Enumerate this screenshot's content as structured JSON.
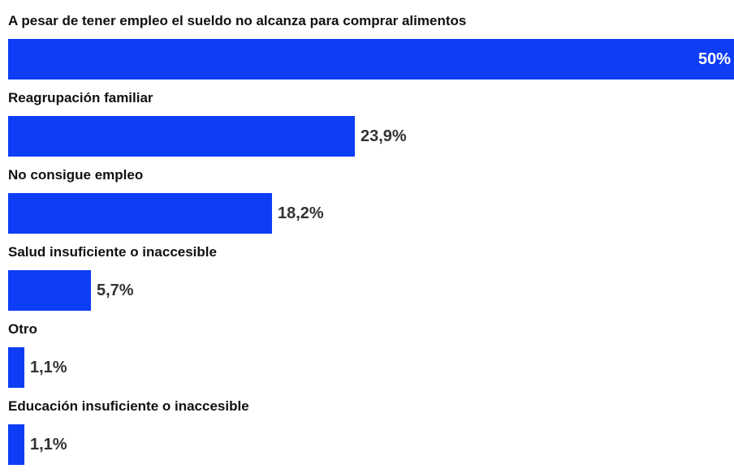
{
  "chart_data": {
    "type": "bar",
    "orientation": "horizontal",
    "categories": [
      "A pesar de tener empleo el sueldo no alcanza para comprar alimentos",
      "Reagrupación familiar",
      "No consigue empleo",
      "Salud insuficiente o inaccesible",
      "Otro",
      "Educación insuficiente o inaccesible"
    ],
    "values": [
      50,
      23.9,
      18.2,
      5.7,
      1.1,
      1.1
    ],
    "value_labels": [
      "50%",
      "23,9%",
      "18,2%",
      "5,7%",
      "1,1%",
      "1,1%"
    ],
    "xlim": [
      0,
      50
    ],
    "grid": false,
    "bar_color": "#0d3df5"
  }
}
